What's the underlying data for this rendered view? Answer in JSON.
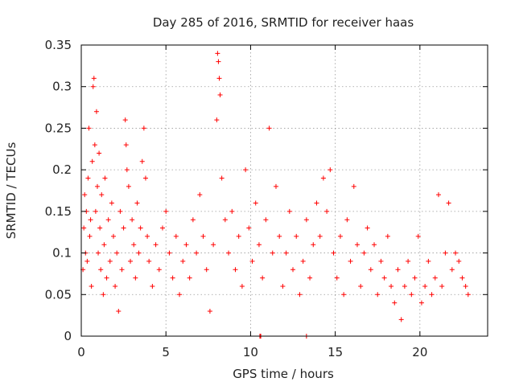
{
  "chart_data": {
    "type": "scatter",
    "title": "Day 285 of 2016, SRMTID for receiver haas",
    "xlabel": "GPS time / hours",
    "ylabel": "SRMTID / TECUs",
    "xlim": [
      0,
      24
    ],
    "ylim": [
      0,
      0.35
    ],
    "xticks": [
      0,
      5,
      10,
      15,
      20
    ],
    "yticks": [
      0,
      0.05,
      0.1,
      0.15,
      0.2,
      0.25,
      0.3,
      0.35
    ],
    "xtick_labels": [
      "0",
      "5",
      "10",
      "15",
      "20"
    ],
    "ytick_labels": [
      "0",
      "0.05",
      "0.1",
      "0.15",
      "0.2",
      "0.25",
      "0.3",
      "0.35"
    ],
    "grid": true,
    "legend": null,
    "marker": "+",
    "color": "#ff0000",
    "series": [
      {
        "name": "SRMTID",
        "points": [
          [
            0.1,
            0.08
          ],
          [
            0.15,
            0.13
          ],
          [
            0.2,
            0.17
          ],
          [
            0.25,
            0.1
          ],
          [
            0.3,
            0.15
          ],
          [
            0.35,
            0.09
          ],
          [
            0.4,
            0.19
          ],
          [
            0.45,
            0.25
          ],
          [
            0.5,
            0.12
          ],
          [
            0.55,
            0.14
          ],
          [
            0.6,
            0.06
          ],
          [
            0.65,
            0.21
          ],
          [
            0.7,
            0.3
          ],
          [
            0.75,
            0.31
          ],
          [
            0.8,
            0.23
          ],
          [
            0.85,
            0.15
          ],
          [
            0.9,
            0.27
          ],
          [
            0.95,
            0.18
          ],
          [
            1.0,
            0.1
          ],
          [
            1.05,
            0.22
          ],
          [
            1.1,
            0.13
          ],
          [
            1.15,
            0.08
          ],
          [
            1.2,
            0.17
          ],
          [
            1.3,
            0.05
          ],
          [
            1.35,
            0.11
          ],
          [
            1.4,
            0.19
          ],
          [
            1.5,
            0.07
          ],
          [
            1.6,
            0.14
          ],
          [
            1.7,
            0.09
          ],
          [
            1.8,
            0.16
          ],
          [
            1.9,
            0.12
          ],
          [
            2.0,
            0.06
          ],
          [
            2.1,
            0.1
          ],
          [
            2.2,
            0.03
          ],
          [
            2.3,
            0.15
          ],
          [
            2.4,
            0.08
          ],
          [
            2.5,
            0.13
          ],
          [
            2.6,
            0.26
          ],
          [
            2.65,
            0.23
          ],
          [
            2.7,
            0.2
          ],
          [
            2.8,
            0.18
          ],
          [
            2.9,
            0.09
          ],
          [
            3.0,
            0.14
          ],
          [
            3.1,
            0.11
          ],
          [
            3.2,
            0.07
          ],
          [
            3.3,
            0.16
          ],
          [
            3.4,
            0.1
          ],
          [
            3.5,
            0.13
          ],
          [
            3.6,
            0.21
          ],
          [
            3.7,
            0.25
          ],
          [
            3.8,
            0.19
          ],
          [
            3.9,
            0.12
          ],
          [
            4.0,
            0.09
          ],
          [
            4.2,
            0.06
          ],
          [
            4.4,
            0.11
          ],
          [
            4.6,
            0.08
          ],
          [
            4.8,
            0.13
          ],
          [
            5.0,
            0.15
          ],
          [
            5.2,
            0.1
          ],
          [
            5.4,
            0.07
          ],
          [
            5.6,
            0.12
          ],
          [
            5.8,
            0.05
          ],
          [
            6.0,
            0.09
          ],
          [
            6.2,
            0.11
          ],
          [
            6.4,
            0.07
          ],
          [
            6.6,
            0.14
          ],
          [
            6.8,
            0.1
          ],
          [
            7.0,
            0.17
          ],
          [
            7.2,
            0.12
          ],
          [
            7.4,
            0.08
          ],
          [
            7.6,
            0.03
          ],
          [
            7.8,
            0.11
          ],
          [
            8.0,
            0.26
          ],
          [
            8.05,
            0.34
          ],
          [
            8.1,
            0.33
          ],
          [
            8.15,
            0.31
          ],
          [
            8.2,
            0.29
          ],
          [
            8.3,
            0.19
          ],
          [
            8.5,
            0.14
          ],
          [
            8.7,
            0.1
          ],
          [
            8.9,
            0.15
          ],
          [
            9.1,
            0.08
          ],
          [
            9.3,
            0.12
          ],
          [
            9.5,
            0.06
          ],
          [
            9.7,
            0.2
          ],
          [
            9.9,
            0.13
          ],
          [
            10.1,
            0.09
          ],
          [
            10.3,
            0.16
          ],
          [
            10.5,
            0.11
          ],
          [
            10.7,
            0.07
          ],
          [
            10.9,
            0.14
          ],
          [
            11.1,
            0.25
          ],
          [
            11.3,
            0.1
          ],
          [
            11.5,
            0.18
          ],
          [
            11.7,
            0.12
          ],
          [
            11.9,
            0.06
          ],
          [
            12.1,
            0.1
          ],
          [
            12.3,
            0.15
          ],
          [
            12.5,
            0.08
          ],
          [
            12.7,
            0.12
          ],
          [
            12.9,
            0.05
          ],
          [
            13.1,
            0.09
          ],
          [
            13.3,
            0.14
          ],
          [
            13.5,
            0.07
          ],
          [
            13.7,
            0.11
          ],
          [
            13.9,
            0.16
          ],
          [
            14.1,
            0.12
          ],
          [
            14.3,
            0.19
          ],
          [
            14.5,
            0.15
          ],
          [
            14.7,
            0.2
          ],
          [
            14.9,
            0.1
          ],
          [
            15.1,
            0.07
          ],
          [
            15.3,
            0.12
          ],
          [
            15.5,
            0.05
          ],
          [
            15.7,
            0.14
          ],
          [
            15.9,
            0.09
          ],
          [
            16.1,
            0.18
          ],
          [
            16.3,
            0.11
          ],
          [
            16.5,
            0.06
          ],
          [
            16.7,
            0.1
          ],
          [
            16.9,
            0.13
          ],
          [
            17.1,
            0.08
          ],
          [
            17.3,
            0.11
          ],
          [
            17.5,
            0.05
          ],
          [
            17.7,
            0.09
          ],
          [
            17.9,
            0.07
          ],
          [
            18.1,
            0.12
          ],
          [
            18.3,
            0.06
          ],
          [
            18.5,
            0.04
          ],
          [
            18.7,
            0.08
          ],
          [
            18.9,
            0.02
          ],
          [
            19.1,
            0.06
          ],
          [
            19.3,
            0.09
          ],
          [
            19.5,
            0.05
          ],
          [
            19.7,
            0.07
          ],
          [
            19.9,
            0.12
          ],
          [
            20.1,
            0.04
          ],
          [
            20.3,
            0.06
          ],
          [
            20.5,
            0.09
          ],
          [
            20.7,
            0.05
          ],
          [
            20.9,
            0.07
          ],
          [
            21.1,
            0.17
          ],
          [
            21.3,
            0.06
          ],
          [
            21.5,
            0.1
          ],
          [
            21.7,
            0.16
          ],
          [
            21.9,
            0.08
          ],
          [
            22.1,
            0.1
          ],
          [
            22.3,
            0.09
          ],
          [
            22.5,
            0.07
          ],
          [
            22.7,
            0.06
          ],
          [
            22.85,
            0.05
          ],
          [
            10.55,
            0.0
          ],
          [
            10.6,
            0.0
          ],
          [
            13.3,
            0.0
          ]
        ]
      }
    ]
  }
}
